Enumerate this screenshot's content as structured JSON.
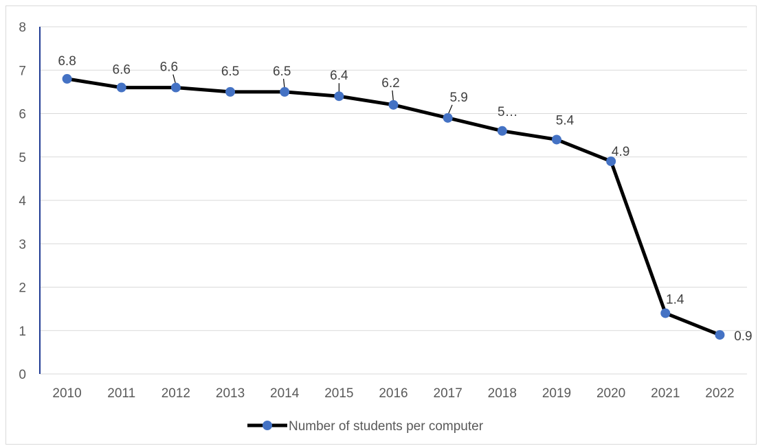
{
  "chart_data": {
    "type": "line",
    "title": "",
    "xlabel": "",
    "ylabel": "",
    "categories": [
      "2010",
      "2011",
      "2012",
      "2013",
      "2014",
      "2015",
      "2016",
      "2017",
      "2018",
      "2019",
      "2020",
      "2021",
      "2022"
    ],
    "series": [
      {
        "name": "Number of students per computer",
        "values": [
          6.8,
          6.6,
          6.6,
          6.5,
          6.5,
          6.4,
          6.2,
          5.9,
          5.6,
          5.4,
          4.9,
          1.4,
          0.9
        ],
        "data_labels": [
          "6.8",
          "6.6",
          "6.6",
          "6.5",
          "6.5",
          "6.4",
          "6.2",
          "5.9",
          "5…",
          "5.4",
          "4.9",
          "1.4",
          "0.9"
        ]
      }
    ],
    "ylim": [
      0,
      8
    ],
    "yticks": [
      "0",
      "1",
      "2",
      "3",
      "4",
      "5",
      "6",
      "7",
      "8"
    ],
    "grid": true,
    "legend_position": "bottom",
    "colors": {
      "line": "#000000",
      "marker": "#4472c4",
      "grid": "#d9d9d9",
      "axis": "#1f3a93"
    }
  }
}
